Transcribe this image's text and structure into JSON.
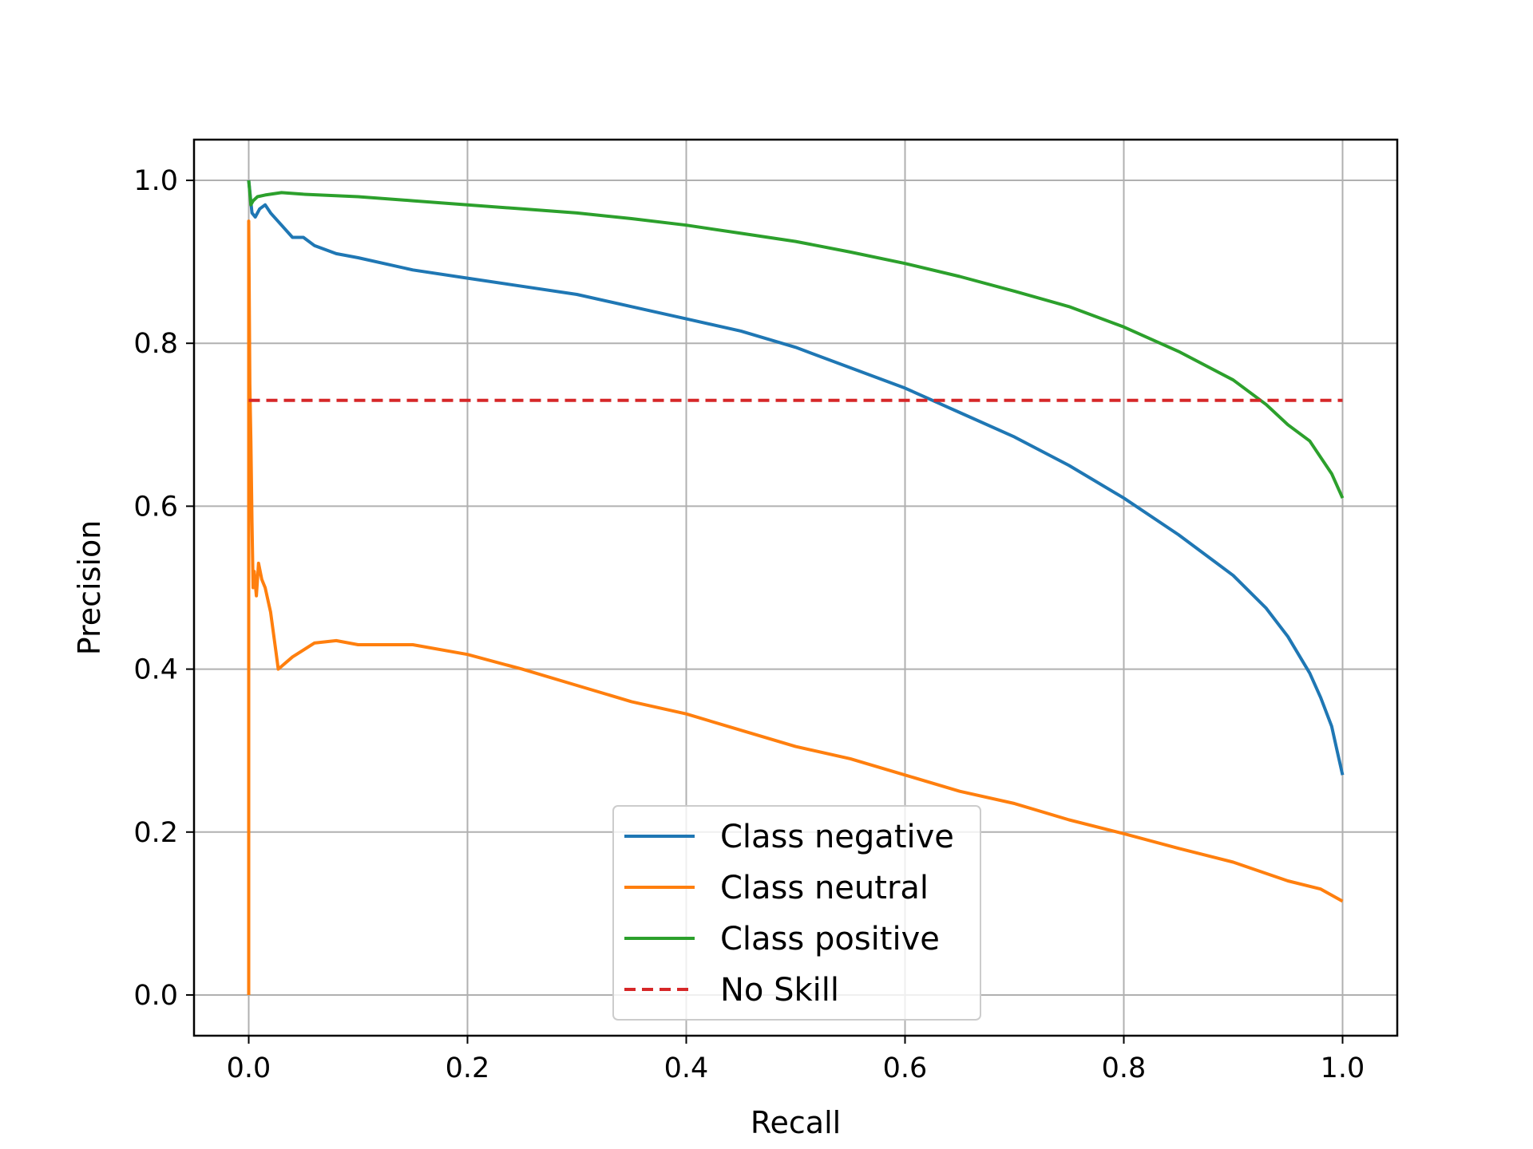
{
  "chart_data": {
    "type": "line",
    "title": "",
    "xlabel": "Recall",
    "ylabel": "Precision",
    "xlim": [
      -0.05,
      1.05
    ],
    "ylim": [
      -0.05,
      1.05
    ],
    "xticks": [
      0.0,
      0.2,
      0.4,
      0.6,
      0.8,
      1.0
    ],
    "xtick_labels": [
      "0.0",
      "0.2",
      "0.4",
      "0.6",
      "0.8",
      "1.0"
    ],
    "yticks": [
      0.0,
      0.2,
      0.4,
      0.6,
      0.8,
      1.0
    ],
    "ytick_labels": [
      "0.0",
      "0.2",
      "0.4",
      "0.6",
      "0.8",
      "1.0"
    ],
    "grid": true,
    "legend_position": "lower-center",
    "series": [
      {
        "name": "Class negative",
        "color": "#1f77b4",
        "dashed": false,
        "x": [
          0.0,
          0.003,
          0.006,
          0.01,
          0.015,
          0.02,
          0.03,
          0.04,
          0.05,
          0.06,
          0.08,
          0.1,
          0.15,
          0.2,
          0.25,
          0.3,
          0.35,
          0.4,
          0.45,
          0.5,
          0.55,
          0.6,
          0.65,
          0.7,
          0.75,
          0.8,
          0.85,
          0.9,
          0.93,
          0.95,
          0.97,
          0.98,
          0.99,
          0.995,
          1.0
        ],
        "y": [
          1.0,
          0.96,
          0.955,
          0.965,
          0.97,
          0.96,
          0.945,
          0.93,
          0.93,
          0.92,
          0.91,
          0.905,
          0.89,
          0.88,
          0.87,
          0.86,
          0.845,
          0.83,
          0.815,
          0.795,
          0.77,
          0.745,
          0.715,
          0.685,
          0.65,
          0.61,
          0.565,
          0.515,
          0.475,
          0.44,
          0.395,
          0.365,
          0.33,
          0.3,
          0.27
        ]
      },
      {
        "name": "Class neutral",
        "color": "#ff7f0e",
        "dashed": false,
        "x": [
          0.0,
          0.0,
          0.001,
          0.002,
          0.003,
          0.004,
          0.005,
          0.007,
          0.009,
          0.012,
          0.015,
          0.02,
          0.025,
          0.027,
          0.04,
          0.06,
          0.08,
          0.1,
          0.15,
          0.2,
          0.25,
          0.3,
          0.35,
          0.4,
          0.45,
          0.5,
          0.55,
          0.6,
          0.65,
          0.7,
          0.75,
          0.8,
          0.85,
          0.9,
          0.95,
          0.98,
          1.0
        ],
        "y": [
          0.0,
          0.95,
          0.75,
          0.68,
          0.58,
          0.5,
          0.52,
          0.49,
          0.53,
          0.51,
          0.5,
          0.47,
          0.42,
          0.4,
          0.415,
          0.432,
          0.435,
          0.43,
          0.43,
          0.418,
          0.4,
          0.38,
          0.36,
          0.345,
          0.325,
          0.305,
          0.29,
          0.27,
          0.25,
          0.235,
          0.215,
          0.198,
          0.18,
          0.163,
          0.14,
          0.13,
          0.115
        ]
      },
      {
        "name": "Class positive",
        "color": "#2ca02c",
        "dashed": false,
        "x": [
          0.0,
          0.002,
          0.004,
          0.008,
          0.015,
          0.03,
          0.05,
          0.1,
          0.15,
          0.2,
          0.25,
          0.3,
          0.35,
          0.4,
          0.45,
          0.5,
          0.55,
          0.6,
          0.65,
          0.7,
          0.75,
          0.8,
          0.85,
          0.9,
          0.93,
          0.95,
          0.97,
          0.98,
          0.99,
          1.0
        ],
        "y": [
          1.0,
          0.97,
          0.975,
          0.98,
          0.982,
          0.985,
          0.983,
          0.98,
          0.975,
          0.97,
          0.965,
          0.96,
          0.953,
          0.945,
          0.935,
          0.925,
          0.912,
          0.898,
          0.882,
          0.864,
          0.845,
          0.82,
          0.79,
          0.755,
          0.725,
          0.7,
          0.68,
          0.66,
          0.64,
          0.61
        ]
      },
      {
        "name": "No Skill",
        "color": "#d62728",
        "dashed": true,
        "x": [
          0.0,
          1.0
        ],
        "y": [
          0.73,
          0.73
        ]
      }
    ]
  }
}
